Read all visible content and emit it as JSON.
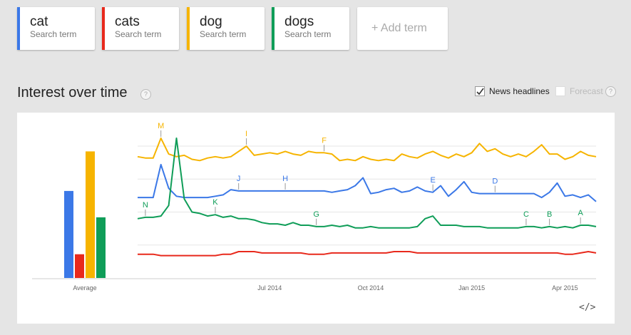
{
  "terms": [
    {
      "name": "cat",
      "sub": "Search term",
      "color": "#3b78e7"
    },
    {
      "name": "cats",
      "sub": "Search term",
      "color": "#e8291c"
    },
    {
      "name": "dog",
      "sub": "Search term",
      "color": "#f6b400"
    },
    {
      "name": "dogs",
      "sub": "Search term",
      "color": "#0f9d58"
    }
  ],
  "add_term": "+ Add term",
  "section": {
    "title": "Interest over time",
    "help": "?"
  },
  "options": {
    "news_label": "News headlines",
    "news_checked": true,
    "forecast_label": "Forecast",
    "forecast_checked": false
  },
  "embed_icon": "</>",
  "chart_data": {
    "type": "line",
    "average_bars": {
      "label": "Average",
      "values": [
        66,
        18,
        96,
        46
      ]
    },
    "x_ticks": [
      "Jul 2014",
      "Oct 2014",
      "Jan 2015",
      "Apr 2015"
    ],
    "x_tick_positions": [
      17,
      30,
      43,
      55
    ],
    "grid": true,
    "legend": "top",
    "ylim": [
      0,
      100
    ],
    "series": [
      {
        "name": "cat",
        "color": "#3b78e7",
        "values": [
          61,
          61,
          61,
          86,
          68,
          62,
          61,
          61,
          61,
          61,
          62,
          63,
          67,
          66,
          66,
          66,
          66,
          66,
          66,
          66,
          66,
          66,
          66,
          66,
          66,
          65,
          66,
          67,
          70,
          76,
          64,
          65,
          67,
          68,
          65,
          66,
          69,
          66,
          65,
          70,
          62,
          67,
          73,
          65,
          64,
          64,
          64,
          64,
          64,
          64,
          64,
          64,
          61,
          65,
          72,
          62,
          63,
          61,
          63,
          58
        ]
      },
      {
        "name": "cats",
        "color": "#e8291c",
        "values": [
          18,
          18,
          18,
          17,
          17,
          17,
          17,
          17,
          17,
          17,
          17,
          18,
          18,
          20,
          20,
          20,
          19,
          19,
          19,
          19,
          19,
          19,
          18,
          18,
          18,
          19,
          19,
          19,
          19,
          19,
          19,
          19,
          19,
          20,
          20,
          20,
          19,
          19,
          19,
          19,
          19,
          19,
          19,
          19,
          19,
          19,
          19,
          19,
          19,
          19,
          19,
          19,
          19,
          19,
          19,
          18,
          18,
          19,
          20,
          19
        ]
      },
      {
        "name": "dog",
        "color": "#f6b400",
        "values": [
          92,
          91,
          91,
          106,
          94,
          92,
          93,
          90,
          89,
          91,
          92,
          91,
          92,
          96,
          100,
          93,
          94,
          95,
          94,
          96,
          94,
          93,
          96,
          95,
          95,
          94,
          89,
          90,
          89,
          92,
          90,
          89,
          90,
          89,
          94,
          92,
          91,
          94,
          96,
          93,
          91,
          94,
          92,
          95,
          102,
          96,
          98,
          94,
          92,
          94,
          92,
          96,
          101,
          94,
          94,
          90,
          92,
          96,
          93,
          92
        ]
      },
      {
        "name": "dogs",
        "color": "#0f9d58",
        "values": [
          45,
          46,
          46,
          47,
          55,
          106,
          60,
          50,
          49,
          47,
          48,
          46,
          47,
          45,
          45,
          44,
          42,
          41,
          41,
          40,
          42,
          40,
          40,
          39,
          39,
          40,
          39,
          40,
          38,
          38,
          39,
          38,
          38,
          38,
          38,
          38,
          39,
          45,
          47,
          40,
          40,
          40,
          39,
          39,
          39,
          38,
          38,
          38,
          38,
          38,
          39,
          39,
          38,
          39,
          38,
          39,
          38,
          40,
          40,
          39
        ]
      }
    ],
    "annotations": [
      {
        "label": "M",
        "series": "dog",
        "index": 3
      },
      {
        "label": "I",
        "series": "dog",
        "index": 14
      },
      {
        "label": "F",
        "series": "dog",
        "index": 24
      },
      {
        "label": "J",
        "series": "cat",
        "index": 13
      },
      {
        "label": "H",
        "series": "cat",
        "index": 19
      },
      {
        "label": "E",
        "series": "cat",
        "index": 38
      },
      {
        "label": "D",
        "series": "cat",
        "index": 46
      },
      {
        "label": "N",
        "series": "dogs",
        "index": 1
      },
      {
        "label": "K",
        "series": "dogs",
        "index": 10
      },
      {
        "label": "G",
        "series": "dogs",
        "index": 23
      },
      {
        "label": "C",
        "series": "dogs",
        "index": 50
      },
      {
        "label": "B",
        "series": "dogs",
        "index": 53
      },
      {
        "label": "A",
        "series": "dogs",
        "index": 57
      }
    ]
  }
}
